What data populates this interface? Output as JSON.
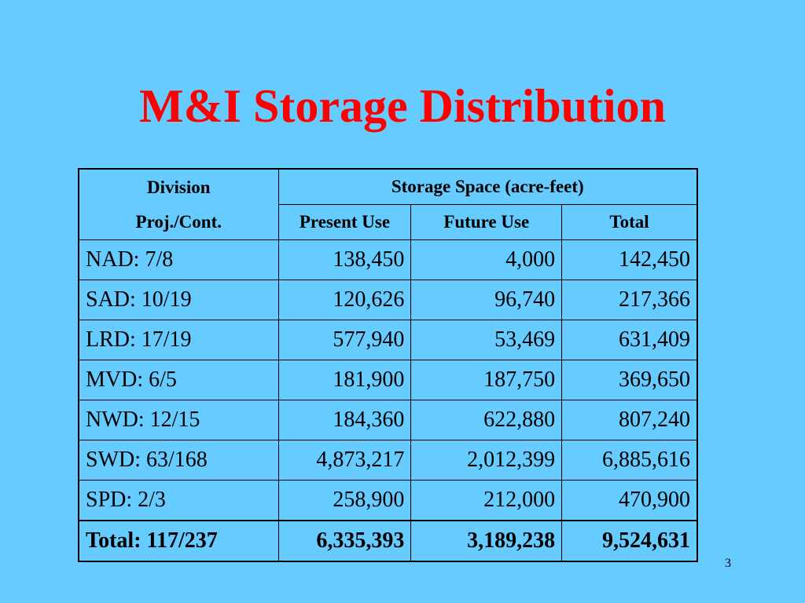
{
  "slide": {
    "title": "M&I Storage Distribution",
    "page_number": "3",
    "background_color": "#66ccff",
    "title_color": "#ff0000"
  },
  "table": {
    "header": {
      "division_line1": "Division",
      "division_line2": "Proj./Cont.",
      "group": "Storage Space (acre-feet)",
      "present": "Present Use",
      "future": "Future Use",
      "total": "Total"
    },
    "rows": [
      {
        "division": "NAD: 7/8",
        "present": "138,450",
        "future": "4,000",
        "total": "142,450"
      },
      {
        "division": "SAD: 10/19",
        "present": "120,626",
        "future": "96,740",
        "total": "217,366"
      },
      {
        "division": "LRD: 17/19",
        "present": "577,940",
        "future": "53,469",
        "total": "631,409"
      },
      {
        "division": "MVD: 6/5",
        "present": "181,900",
        "future": "187,750",
        "total": "369,650"
      },
      {
        "division": "NWD: 12/15",
        "present": "184,360",
        "future": "622,880",
        "total": "807,240"
      },
      {
        "division": "SWD: 63/168",
        "present": "4,873,217",
        "future": "2,012,399",
        "total": "6,885,616"
      },
      {
        "division": "SPD: 2/3",
        "present": "258,900",
        "future": "212,000",
        "total": "470,900"
      }
    ],
    "total_row": {
      "division": "Total: 117/237",
      "present": "6,335,393",
      "future": "3,189,238",
      "total": "9,524,631"
    }
  }
}
